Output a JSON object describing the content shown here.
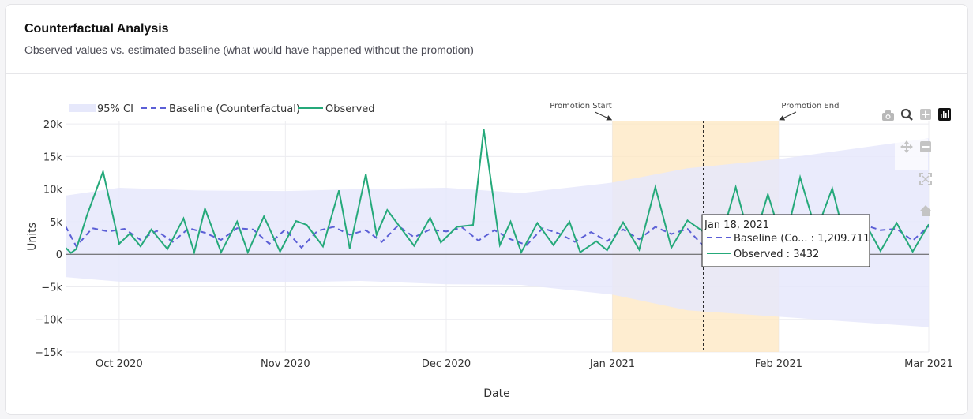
{
  "card": {
    "title": "Counterfactual Analysis",
    "subtitle": "Observed values vs. estimated baseline (what would have happened without the promotion)"
  },
  "modebar": {
    "icons": [
      "camera-icon",
      "zoom-icon",
      "zoom-in-icon",
      "plotly-logo-icon",
      "pan-icon",
      "zoom-out-icon",
      "autoscale-icon",
      "reset-axes-icon"
    ]
  },
  "chart_data": {
    "type": "line",
    "xlabel": "Date",
    "ylabel": "Units",
    "xlim": [
      "2020-09-21",
      "2021-03-01"
    ],
    "ylim": [
      -15000,
      20500
    ],
    "y_ticks": [
      20000,
      15000,
      10000,
      5000,
      0,
      -5000,
      -10000,
      -15000
    ],
    "y_tick_labels": [
      "20k",
      "15k",
      "10k",
      "5k",
      "0",
      "−5k",
      "−10k",
      "−15k"
    ],
    "x_ticks": [
      "2020-10-01",
      "2020-11-01",
      "2020-12-01",
      "2021-01-01",
      "2021-02-01",
      "2021-03-01"
    ],
    "x_tick_labels": [
      "Oct 2020",
      "Nov 2020",
      "Dec 2020",
      "Jan 2021",
      "Feb 2021",
      "Mar 2021"
    ],
    "grid": true,
    "legend_position": "top-left",
    "legend": [
      "95% CI",
      "Baseline (Counterfactual)",
      "Observed"
    ],
    "colors": {
      "ci": "#e6e8fb",
      "baseline": "#5b5fd6",
      "observed": "#25a97a",
      "promo": "#fde7c0"
    },
    "series": [
      {
        "name": "Observed",
        "x": [
          "2020-09-21",
          "2020-09-22",
          "2020-09-23",
          "2020-09-25",
          "2020-09-28",
          "2020-10-01",
          "2020-10-03",
          "2020-10-05",
          "2020-10-07",
          "2020-10-10",
          "2020-10-13",
          "2020-10-15",
          "2020-10-17",
          "2020-10-20",
          "2020-10-23",
          "2020-10-25",
          "2020-10-28",
          "2020-10-31",
          "2020-11-03",
          "2020-11-05",
          "2020-11-08",
          "2020-11-11",
          "2020-11-13",
          "2020-11-16",
          "2020-11-18",
          "2020-11-20",
          "2020-11-23",
          "2020-11-25",
          "2020-11-28",
          "2020-11-30",
          "2020-12-03",
          "2020-12-06",
          "2020-12-08",
          "2020-12-11",
          "2020-12-13",
          "2020-12-15",
          "2020-12-18",
          "2020-12-21",
          "2020-12-24",
          "2020-12-26",
          "2020-12-29",
          "2020-12-31",
          "2021-01-03",
          "2021-01-06",
          "2021-01-09",
          "2021-01-12",
          "2021-01-15",
          "2021-01-18",
          "2021-01-21",
          "2021-01-24",
          "2021-01-27",
          "2021-01-30",
          "2021-02-02",
          "2021-02-05",
          "2021-02-08",
          "2021-02-11",
          "2021-02-14",
          "2021-02-17",
          "2021-02-20",
          "2021-02-23",
          "2021-02-26",
          "2021-03-01"
        ],
        "y": [
          1000,
          200,
          800,
          6000,
          12700,
          1600,
          3200,
          1200,
          3800,
          800,
          5500,
          300,
          7000,
          300,
          5000,
          300,
          5800,
          400,
          5100,
          4500,
          1200,
          9800,
          900,
          12300,
          3000,
          6800,
          3500,
          1300,
          5600,
          1800,
          4200,
          4500,
          19200,
          1400,
          5000,
          300,
          4800,
          1400,
          5000,
          300,
          2000,
          600,
          4900,
          700,
          10300,
          1000,
          5200,
          3432,
          1700,
          10300,
          1000,
          9200,
          1200,
          11800,
          3500,
          10100,
          300,
          5000,
          500,
          4800,
          400,
          4600
        ]
      },
      {
        "name": "Baseline (Counterfactual)",
        "x": [
          "2020-09-21",
          "2020-09-23",
          "2020-09-26",
          "2020-09-29",
          "2020-10-02",
          "2020-10-05",
          "2020-10-08",
          "2020-10-11",
          "2020-10-14",
          "2020-10-17",
          "2020-10-20",
          "2020-10-23",
          "2020-10-26",
          "2020-10-29",
          "2020-11-01",
          "2020-11-04",
          "2020-11-07",
          "2020-11-10",
          "2020-11-13",
          "2020-11-16",
          "2020-11-19",
          "2020-11-22",
          "2020-11-25",
          "2020-11-28",
          "2020-12-01",
          "2020-12-04",
          "2020-12-07",
          "2020-12-10",
          "2020-12-13",
          "2020-12-16",
          "2020-12-19",
          "2020-12-22",
          "2020-12-25",
          "2020-12-28",
          "2020-12-31",
          "2021-01-03",
          "2021-01-06",
          "2021-01-09",
          "2021-01-12",
          "2021-01-15",
          "2021-01-18",
          "2021-01-21",
          "2021-01-24",
          "2021-01-27",
          "2021-01-30",
          "2021-02-02",
          "2021-02-05",
          "2021-02-08",
          "2021-02-11",
          "2021-02-14",
          "2021-02-17",
          "2021-02-20",
          "2021-02-23",
          "2021-02-26",
          "2021-03-01"
        ],
        "y": [
          4300,
          1200,
          4000,
          3500,
          3900,
          2200,
          3600,
          1900,
          4000,
          3300,
          2200,
          4000,
          3800,
          1600,
          3800,
          1000,
          3600,
          4200,
          3000,
          3700,
          1900,
          4400,
          2600,
          3800,
          3500,
          4100,
          2100,
          3700,
          2300,
          1400,
          4000,
          3200,
          1900,
          3400,
          2000,
          3800,
          2300,
          4200,
          3100,
          3900,
          1209.711,
          3600,
          2500,
          4000,
          3300,
          2100,
          4200,
          3400,
          3900,
          2500,
          4500,
          3700,
          3900,
          2100,
          4300
        ]
      },
      {
        "name": "95% CI",
        "x": [
          "2020-09-21",
          "2020-10-01",
          "2020-10-15",
          "2020-11-01",
          "2020-11-15",
          "2020-12-01",
          "2020-12-15",
          "2021-01-01",
          "2021-01-15",
          "2021-02-01",
          "2021-02-15",
          "2021-03-01"
        ],
        "upper": [
          9000,
          10200,
          9800,
          9700,
          10000,
          10200,
          9400,
          11000,
          13200,
          14600,
          16200,
          17800
        ],
        "lower": [
          -3500,
          -4200,
          -4300,
          -4300,
          -4100,
          -4600,
          -4700,
          -6200,
          -8600,
          -9600,
          -10400,
          -11200
        ]
      }
    ],
    "shapes": [
      {
        "type": "rect",
        "x0": "2021-01-01",
        "x1": "2021-02-01",
        "label": "promotion-window"
      },
      {
        "type": "vline",
        "x": "2021-01-18",
        "style": "dotted"
      }
    ],
    "annotations": [
      {
        "text": "Promotion Start",
        "x": "2021-01-01"
      },
      {
        "text": "Promotion End",
        "x": "2021-02-01"
      }
    ],
    "hover": {
      "date_label": "Jan 18, 2021",
      "rows": [
        {
          "series": "Baseline (Co...",
          "sep": " : ",
          "value": "1,209.711"
        },
        {
          "series": "Observed",
          "sep": " : ",
          "value": "3432"
        }
      ]
    }
  }
}
